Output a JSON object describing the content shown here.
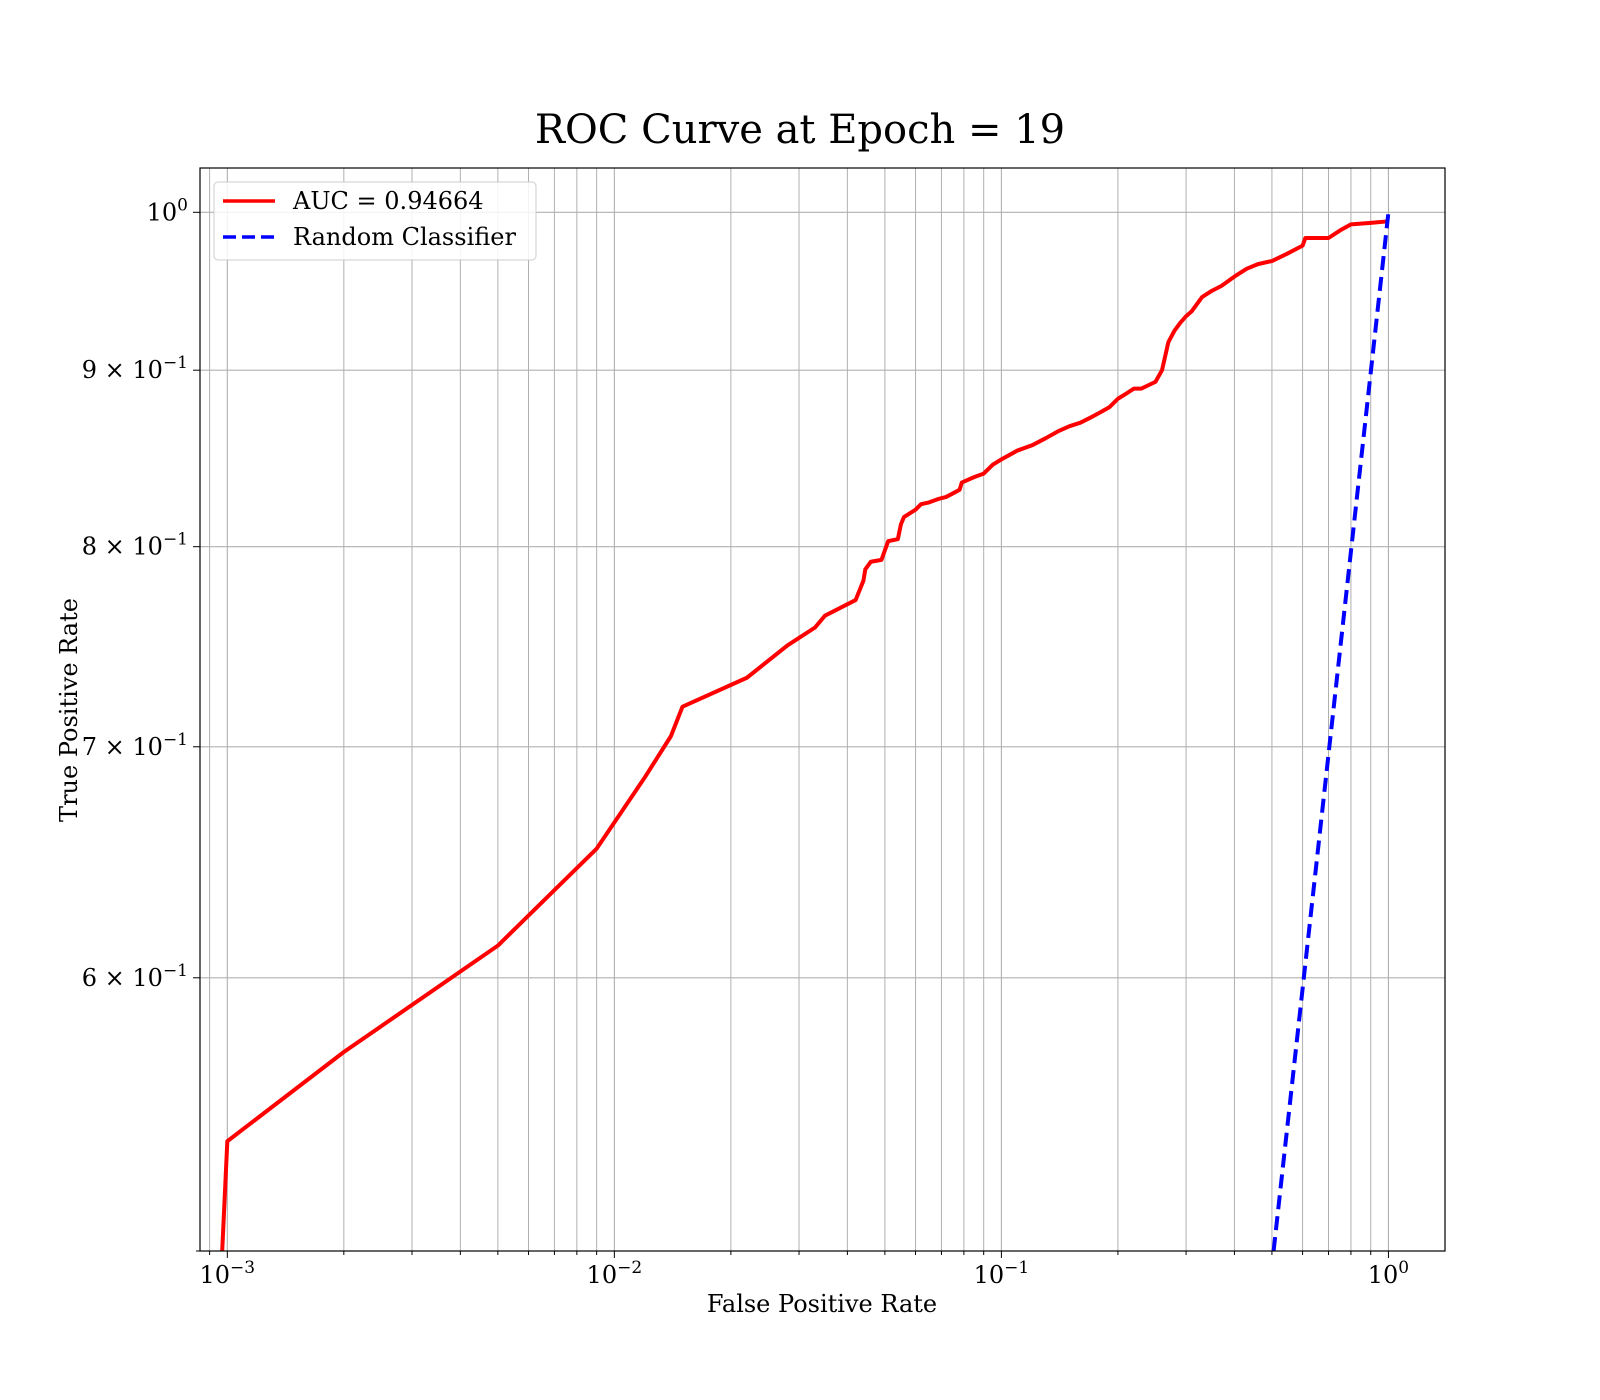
{
  "chart_data": {
    "type": "line",
    "title": "ROC Curve at Epoch = 19",
    "xlabel": "False Positive Rate",
    "ylabel": "True Positive Rate",
    "xscale": "log",
    "yscale": "log",
    "xlim": [
      0.00085,
      1.4
    ],
    "ylim": [
      0.5,
      1.03
    ],
    "grid": true,
    "grid_minor": true,
    "legend_position": "top-left",
    "x_ticks": [
      {
        "value": 0.001,
        "base": "10",
        "exp": "−3"
      },
      {
        "value": 0.01,
        "base": "10",
        "exp": "−2"
      },
      {
        "value": 0.1,
        "base": "10",
        "exp": "−1"
      },
      {
        "value": 1,
        "base": "10",
        "exp": "0"
      }
    ],
    "y_ticks": [
      {
        "value": 1.0,
        "mant": "",
        "base": "10",
        "exp": "0"
      },
      {
        "value": 0.9,
        "mant": "9 × ",
        "base": "10",
        "exp": "−1"
      },
      {
        "value": 0.8,
        "mant": "8 × ",
        "base": "10",
        "exp": "−1"
      },
      {
        "value": 0.7,
        "mant": "7 × ",
        "base": "10",
        "exp": "−1"
      },
      {
        "value": 0.6,
        "mant": "6 × ",
        "base": "10",
        "exp": "−1"
      }
    ],
    "series": [
      {
        "name": "AUC = 0.94664",
        "color": "#ff0000",
        "style": "solid",
        "x": [
          0.00097,
          0.001,
          0.002,
          0.005,
          0.009,
          0.012,
          0.014,
          0.015,
          0.022,
          0.028,
          0.033,
          0.035,
          0.042,
          0.044,
          0.0445,
          0.046,
          0.049,
          0.051,
          0.054,
          0.055,
          0.056,
          0.06,
          0.062,
          0.065,
          0.069,
          0.072,
          0.075,
          0.078,
          0.079,
          0.085,
          0.09,
          0.095,
          0.1,
          0.11,
          0.12,
          0.13,
          0.14,
          0.15,
          0.16,
          0.17,
          0.18,
          0.19,
          0.2,
          0.21,
          0.22,
          0.23,
          0.25,
          0.26,
          0.27,
          0.28,
          0.29,
          0.3,
          0.31,
          0.33,
          0.35,
          0.37,
          0.4,
          0.43,
          0.46,
          0.5,
          0.55,
          0.6,
          0.61,
          0.7,
          0.75,
          0.8,
          0.9,
          1.0
        ],
        "y": [
          0.5,
          0.538,
          0.571,
          0.613,
          0.654,
          0.686,
          0.705,
          0.719,
          0.733,
          0.749,
          0.758,
          0.764,
          0.772,
          0.782,
          0.788,
          0.792,
          0.793,
          0.803,
          0.804,
          0.812,
          0.816,
          0.82,
          0.823,
          0.824,
          0.826,
          0.827,
          0.829,
          0.831,
          0.835,
          0.838,
          0.84,
          0.845,
          0.848,
          0.853,
          0.856,
          0.86,
          0.864,
          0.867,
          0.869,
          0.872,
          0.875,
          0.878,
          0.883,
          0.886,
          0.889,
          0.889,
          0.893,
          0.9,
          0.917,
          0.924,
          0.929,
          0.933,
          0.936,
          0.945,
          0.949,
          0.952,
          0.958,
          0.963,
          0.966,
          0.968,
          0.973,
          0.978,
          0.983,
          0.983,
          0.988,
          0.992,
          0.993,
          0.994
        ]
      },
      {
        "name": "Random Classifier",
        "color": "#0000ff",
        "style": "dashed",
        "x": [
          0.505,
          1.0
        ],
        "y": [
          0.5,
          1.0
        ]
      }
    ]
  }
}
